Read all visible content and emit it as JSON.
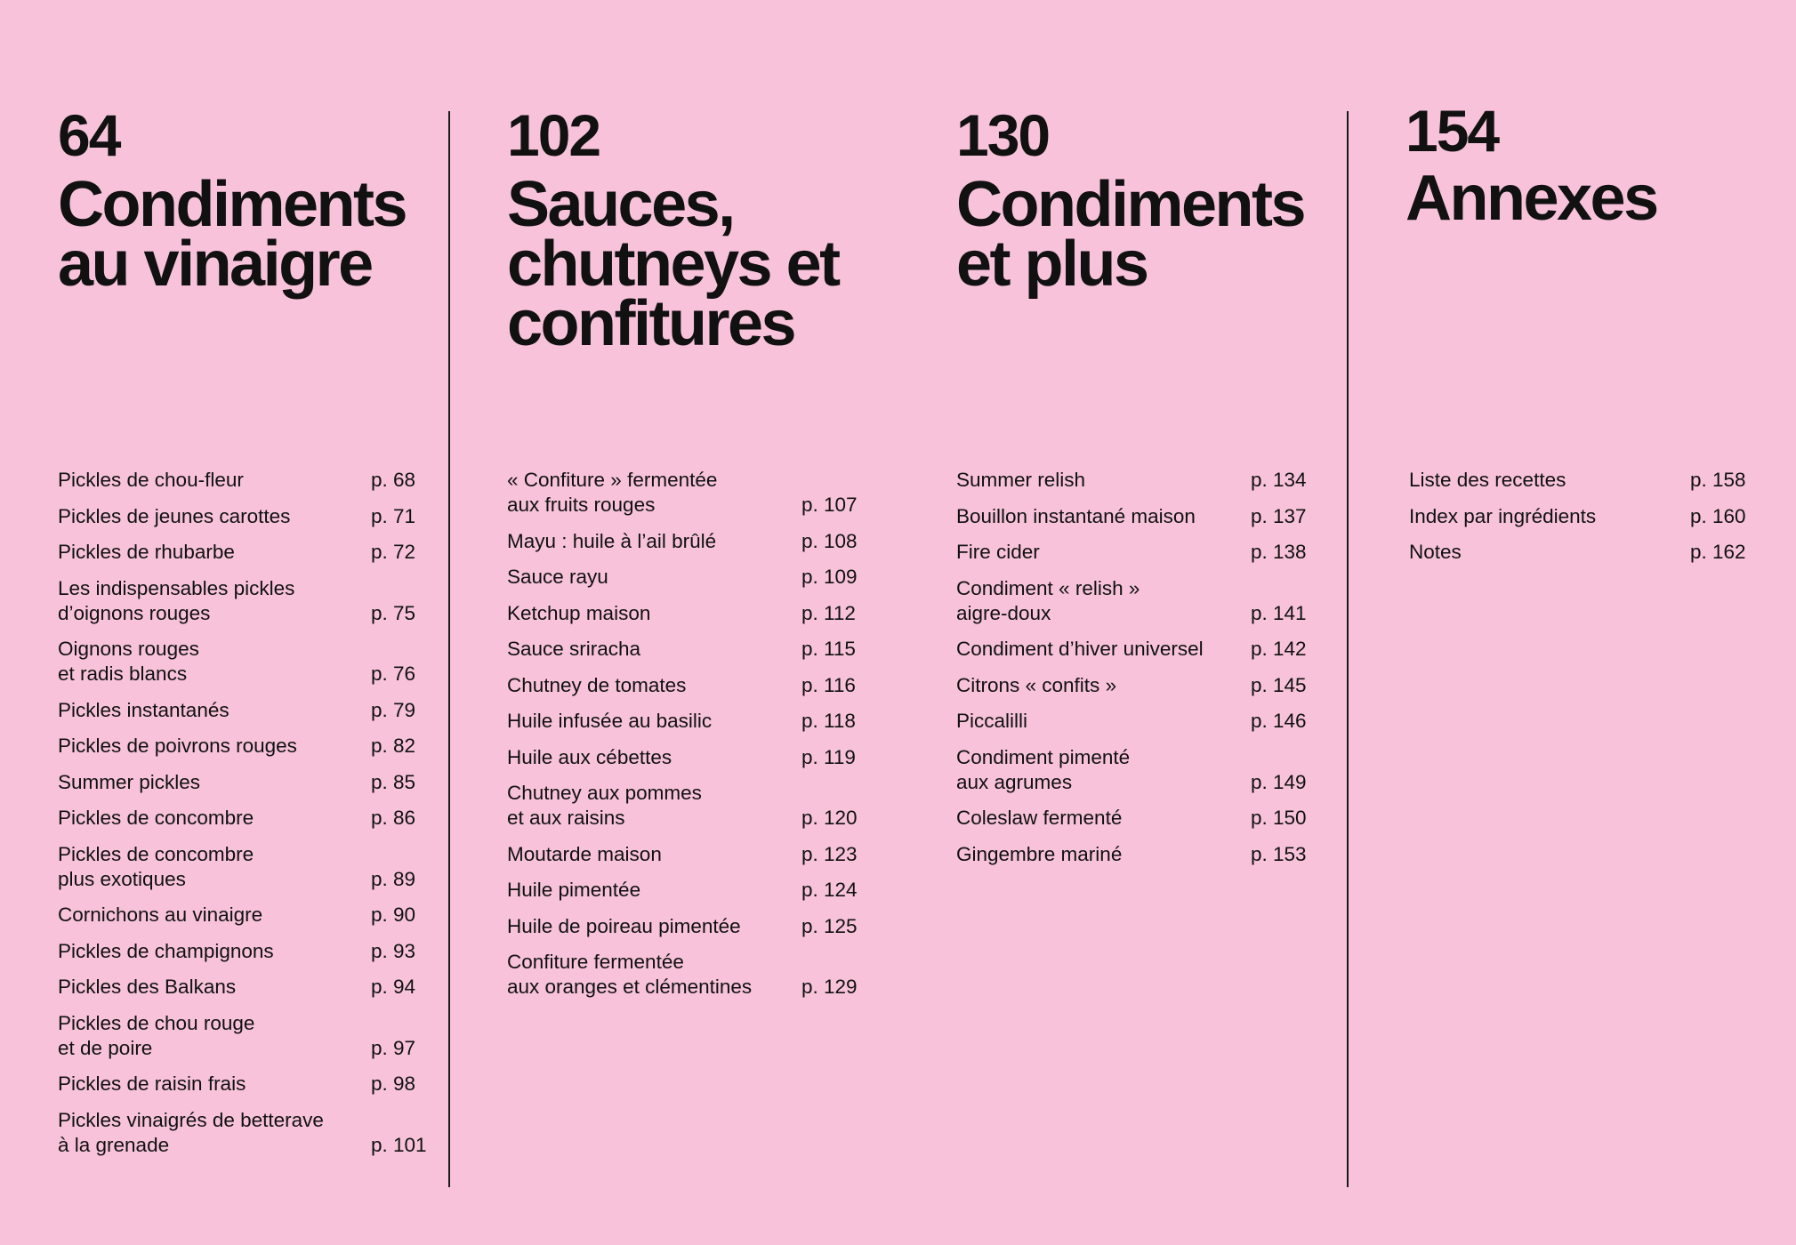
{
  "sections": [
    {
      "number": "64",
      "title": "Condiments\nau vinaigre",
      "entries": [
        {
          "title": "Pickles de chou-fleur",
          "page": "p. 68"
        },
        {
          "title": "Pickles de jeunes carottes",
          "page": "p. 71"
        },
        {
          "title": "Pickles de rhubarbe",
          "page": "p. 72"
        },
        {
          "title": "Les indispensables pickles\nd’oignons rouges",
          "page": "p. 75"
        },
        {
          "title": "Oignons rouges\net radis blancs",
          "page": "p. 76"
        },
        {
          "title": "Pickles instantanés",
          "page": "p. 79"
        },
        {
          "title": "Pickles de poivrons rouges",
          "page": "p. 82"
        },
        {
          "title": "Summer pickles",
          "page": "p. 85"
        },
        {
          "title": "Pickles de concombre",
          "page": "p. 86"
        },
        {
          "title": "Pickles de concombre\nplus exotiques",
          "page": "p. 89"
        },
        {
          "title": "Cornichons au vinaigre",
          "page": "p. 90"
        },
        {
          "title": "Pickles de champignons",
          "page": "p. 93"
        },
        {
          "title": "Pickles des Balkans",
          "page": "p. 94"
        },
        {
          "title": "Pickles de chou rouge\net de poire",
          "page": "p. 97"
        },
        {
          "title": "Pickles de raisin frais",
          "page": "p. 98"
        },
        {
          "title": "Pickles vinaigrés de betterave\nà la grenade",
          "page": "p. 101"
        }
      ]
    },
    {
      "number": "102",
      "title": "Sauces,\nchutneys et\nconfitures",
      "entries": [
        {
          "title": "« Confiture » fermentée\naux fruits rouges",
          "page": "p. 107"
        },
        {
          "title": "Mayu : huile à l’ail brûlé",
          "page": "p. 108"
        },
        {
          "title": "Sauce rayu",
          "page": "p. 109"
        },
        {
          "title": "Ketchup maison",
          "page": "p. 112"
        },
        {
          "title": "Sauce sriracha",
          "page": "p. 115"
        },
        {
          "title": "Chutney de tomates",
          "page": "p. 116"
        },
        {
          "title": "Huile infusée au basilic",
          "page": "p. 118"
        },
        {
          "title": "Huile aux cébettes",
          "page": "p. 119"
        },
        {
          "title": "Chutney aux pommes\net aux raisins",
          "page": "p. 120"
        },
        {
          "title": "Moutarde maison",
          "page": "p. 123"
        },
        {
          "title": "Huile pimentée",
          "page": "p. 124"
        },
        {
          "title": "Huile de poireau pimentée",
          "page": "p. 125"
        },
        {
          "title": "Confiture fermentée\naux oranges et clémentines",
          "page": "p. 129"
        }
      ]
    },
    {
      "number": "130",
      "title": "Condiments\net plus",
      "entries": [
        {
          "title": "Summer relish",
          "page": "p. 134"
        },
        {
          "title": "Bouillon instantané maison",
          "page": "p. 137"
        },
        {
          "title": "Fire cider",
          "page": "p. 138"
        },
        {
          "title": "Condiment « relish »\naigre-doux",
          "page": "p. 141"
        },
        {
          "title": "Condiment d’hiver universel",
          "page": "p. 142"
        },
        {
          "title": "Citrons « confits »",
          "page": "p. 145"
        },
        {
          "title": "Piccalilli",
          "page": "p. 146"
        },
        {
          "title": "Condiment pimenté\naux agrumes",
          "page": "p. 149"
        },
        {
          "title": "Coleslaw fermenté",
          "page": "p. 150"
        },
        {
          "title": "Gingembre mariné",
          "page": "p. 153"
        }
      ]
    },
    {
      "number": "154",
      "title": "Annexes",
      "entries": [
        {
          "title": "Liste des recettes",
          "page": "p. 158"
        },
        {
          "title": "Index par ingrédients",
          "page": "p. 160"
        },
        {
          "title": "Notes",
          "page": "p. 162"
        }
      ]
    }
  ],
  "colors": {
    "background": "#f8c3da",
    "text": "#111111",
    "rule": "#1a1a1a"
  }
}
